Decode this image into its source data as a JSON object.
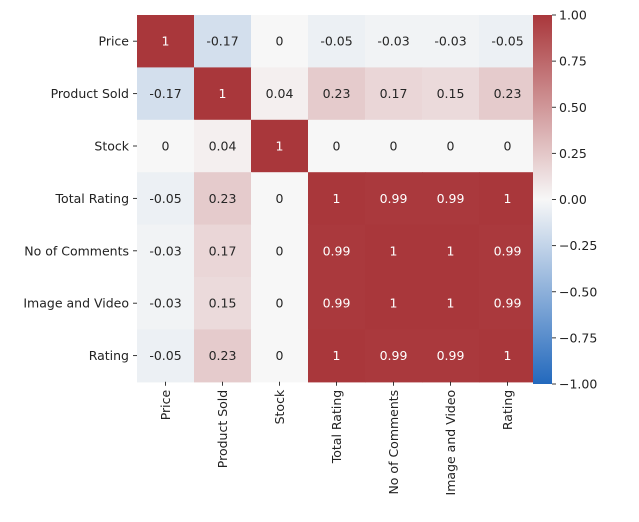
{
  "chart_data": {
    "type": "heatmap",
    "title": "",
    "xlabel": "",
    "ylabel": "",
    "rows": [
      "Price",
      "Product Sold",
      "Stock",
      "Total Rating",
      "No of Comments",
      "Image and Video",
      "Rating"
    ],
    "columns": [
      "Price",
      "Product Sold",
      "Stock",
      "Total Rating",
      "No of Comments",
      "Image and Video",
      "Rating"
    ],
    "values": [
      [
        1,
        -0.17,
        0,
        -0.05,
        -0.03,
        -0.03,
        -0.05
      ],
      [
        -0.17,
        1,
        0.04,
        0.23,
        0.17,
        0.15,
        0.23
      ],
      [
        0,
        0.04,
        1,
        0,
        0,
        0,
        0
      ],
      [
        -0.05,
        0.23,
        0,
        1,
        0.99,
        0.99,
        1
      ],
      [
        -0.03,
        0.17,
        0,
        0.99,
        1,
        1,
        0.99
      ],
      [
        -0.03,
        0.15,
        0,
        0.99,
        1,
        1,
        0.99
      ],
      [
        -0.05,
        0.23,
        0,
        1,
        0.99,
        0.99,
        1
      ]
    ],
    "value_labels": [
      [
        "1",
        "-0.17",
        "0",
        "-0.05",
        "-0.03",
        "-0.03",
        "-0.05"
      ],
      [
        "-0.17",
        "1",
        "0.04",
        "0.23",
        "0.17",
        "0.15",
        "0.23"
      ],
      [
        "0",
        "0.04",
        "1",
        "0",
        "0",
        "0",
        "0"
      ],
      [
        "-0.05",
        "0.23",
        "0",
        "1",
        "0.99",
        "0.99",
        "1"
      ],
      [
        "-0.03",
        "0.17",
        "0",
        "0.99",
        "1",
        "1",
        "0.99"
      ],
      [
        "-0.03",
        "0.15",
        "0",
        "0.99",
        "1",
        "1",
        "0.99"
      ],
      [
        "-0.05",
        "0.23",
        "0",
        "1",
        "0.99",
        "0.99",
        "1"
      ]
    ],
    "colorbar": {
      "vmin": -1,
      "vmax": 1,
      "ticks": [
        1.0,
        0.75,
        0.5,
        0.25,
        0.0,
        -0.25,
        -0.5,
        -0.75,
        -1.0
      ],
      "tick_labels": [
        "1.00",
        "0.75",
        "0.50",
        "0.25",
        "0.00",
        "−0.25",
        "−0.50",
        "−0.75",
        "−1.00"
      ],
      "colormap": "vlag",
      "color_stops": [
        "#2369bd",
        "#f7f7f7",
        "#a9373b"
      ]
    },
    "grid": false,
    "legend": "colorbar-right"
  }
}
